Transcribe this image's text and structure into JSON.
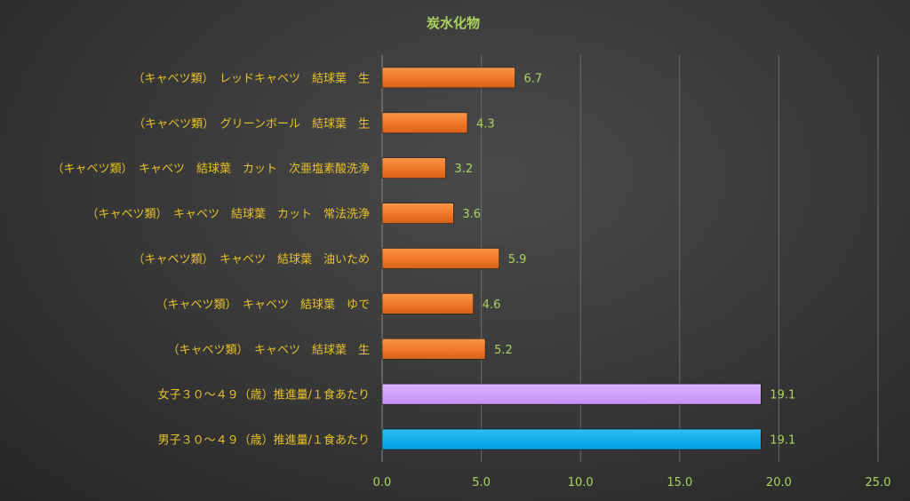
{
  "chart_data": {
    "type": "bar",
    "orientation": "horizontal",
    "title": "炭水化物",
    "categories": [
      "（キャベツ類）　レッドキャベツ　結球葉　生",
      "（キャベツ類）　グリーンボール　結球葉　生",
      "（キャベツ類）　キャベツ　結球葉　カット　次亜塩素酸洗浄",
      "（キャベツ類）　キャベツ　結球葉　カット　常法洗浄",
      "（キャベツ類）　キャベツ　結球葉　油いため",
      "（キャベツ類）　キャベツ　結球葉　ゆで",
      "（キャベツ類）　キャベツ　結球葉　生",
      "女子３０～４９（歳）推進量/１食あたり",
      "男子３０～４９（歳）推進量/１食あたり"
    ],
    "values": [
      6.7,
      4.3,
      3.2,
      3.6,
      5.9,
      4.6,
      5.2,
      19.1,
      19.1
    ],
    "value_labels": [
      "6.7",
      "4.3",
      "3.2",
      "3.6",
      "5.9",
      "4.6",
      "5.2",
      "19.1",
      "19.1"
    ],
    "bar_colors": [
      "#f07a2a",
      "#f07a2a",
      "#f07a2a",
      "#f07a2a",
      "#f07a2a",
      "#f07a2a",
      "#f07a2a",
      "#cc99ff",
      "#00b0f0"
    ],
    "xlim": [
      0,
      25
    ],
    "x_ticks": [
      "0.0",
      "5.0",
      "10.0",
      "15.0",
      "20.0",
      "25.0"
    ],
    "grid": true,
    "colors": {
      "title": "#a9d55f",
      "category_labels": "#e8c22a",
      "tick_labels": "#a9d55f",
      "gridlines": "#6a6a6a"
    }
  }
}
